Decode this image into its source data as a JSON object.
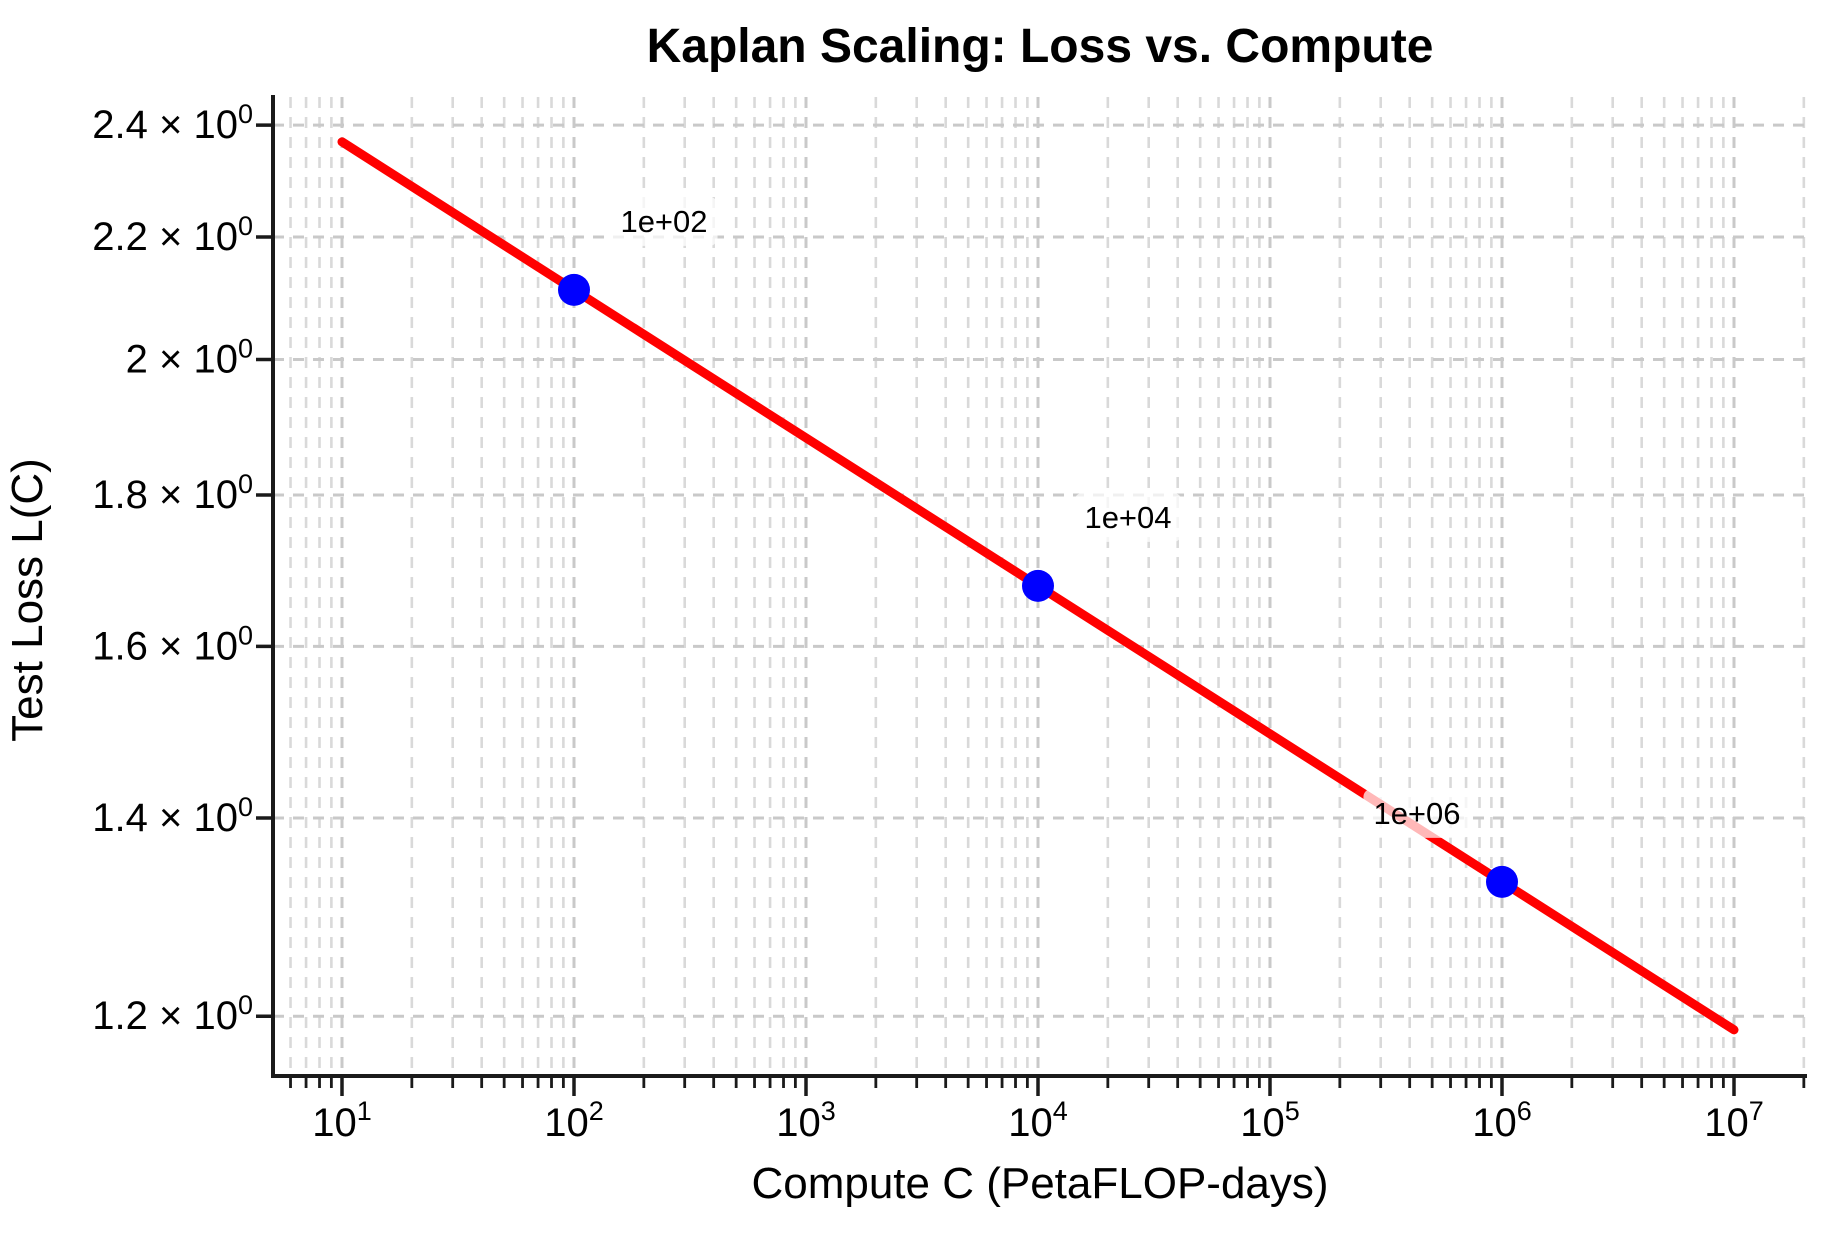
{
  "chart_data": {
    "type": "line",
    "title": "Kaplan Scaling: Loss vs. Compute",
    "xlabel": "Compute C (PetaFLOP-days)",
    "ylabel": "Test Loss L(C)",
    "x_scale": "log",
    "y_scale": "log",
    "xlim": [
      5.05,
      20700000
    ],
    "ylim": [
      1.14,
      2.46
    ],
    "grid": {
      "show": true,
      "minor": true,
      "style": "dashed"
    },
    "legend": {
      "show": false
    },
    "x_ticks": [
      {
        "value": 10,
        "text": "10",
        "sup": "1"
      },
      {
        "value": 100,
        "text": "10",
        "sup": "2"
      },
      {
        "value": 1000,
        "text": "10",
        "sup": "3"
      },
      {
        "value": 10000,
        "text": "10",
        "sup": "4"
      },
      {
        "value": 100000,
        "text": "10",
        "sup": "5"
      },
      {
        "value": 1000000,
        "text": "10",
        "sup": "6"
      },
      {
        "value": 10000000,
        "text": "10",
        "sup": "7"
      }
    ],
    "y_ticks": [
      {
        "value": 1.2,
        "text": "1.2 × 10",
        "sup": "0"
      },
      {
        "value": 1.4,
        "text": "1.4 × 10",
        "sup": "0"
      },
      {
        "value": 1.6,
        "text": "1.6 × 10",
        "sup": "0"
      },
      {
        "value": 1.8,
        "text": "1.8 × 10",
        "sup": "0"
      },
      {
        "value": 2.0,
        "text": "2 × 10",
        "sup": "0"
      },
      {
        "value": 2.2,
        "text": "2.2 × 10",
        "sup": "0"
      },
      {
        "value": 2.4,
        "text": "2.4 × 10",
        "sup": "0"
      }
    ],
    "series": [
      {
        "name": "kaplan-power-law-fit",
        "type": "line",
        "color": "#ff0000",
        "line_width": 9,
        "power_law": {
          "C_c": 310000000,
          "alpha": 0.05
        },
        "x": [
          10,
          10000000
        ],
        "y": [
          2.37,
          1.19
        ]
      }
    ],
    "points": {
      "color": "#0000ff",
      "radius": 16,
      "items": [
        {
          "x": 100,
          "y": 2.11,
          "label": "1e+02",
          "label_side": "right"
        },
        {
          "x": 10000,
          "y": 1.68,
          "label": "1e+04",
          "label_side": "right"
        },
        {
          "x": 1000000,
          "y": 1.33,
          "label": "1e+06",
          "label_side": "left"
        }
      ]
    },
    "annotation_bbox": {
      "fill": "#ffffff",
      "opacity": 0.72,
      "corner_radius": 8
    },
    "colors": {
      "text": "#000000",
      "spine": "#1a1a1a",
      "tick": "#1a1a1a",
      "grid_major": "#c9c9c9",
      "grid_minor": "#d9d9d9",
      "background": "#ffffff"
    }
  }
}
